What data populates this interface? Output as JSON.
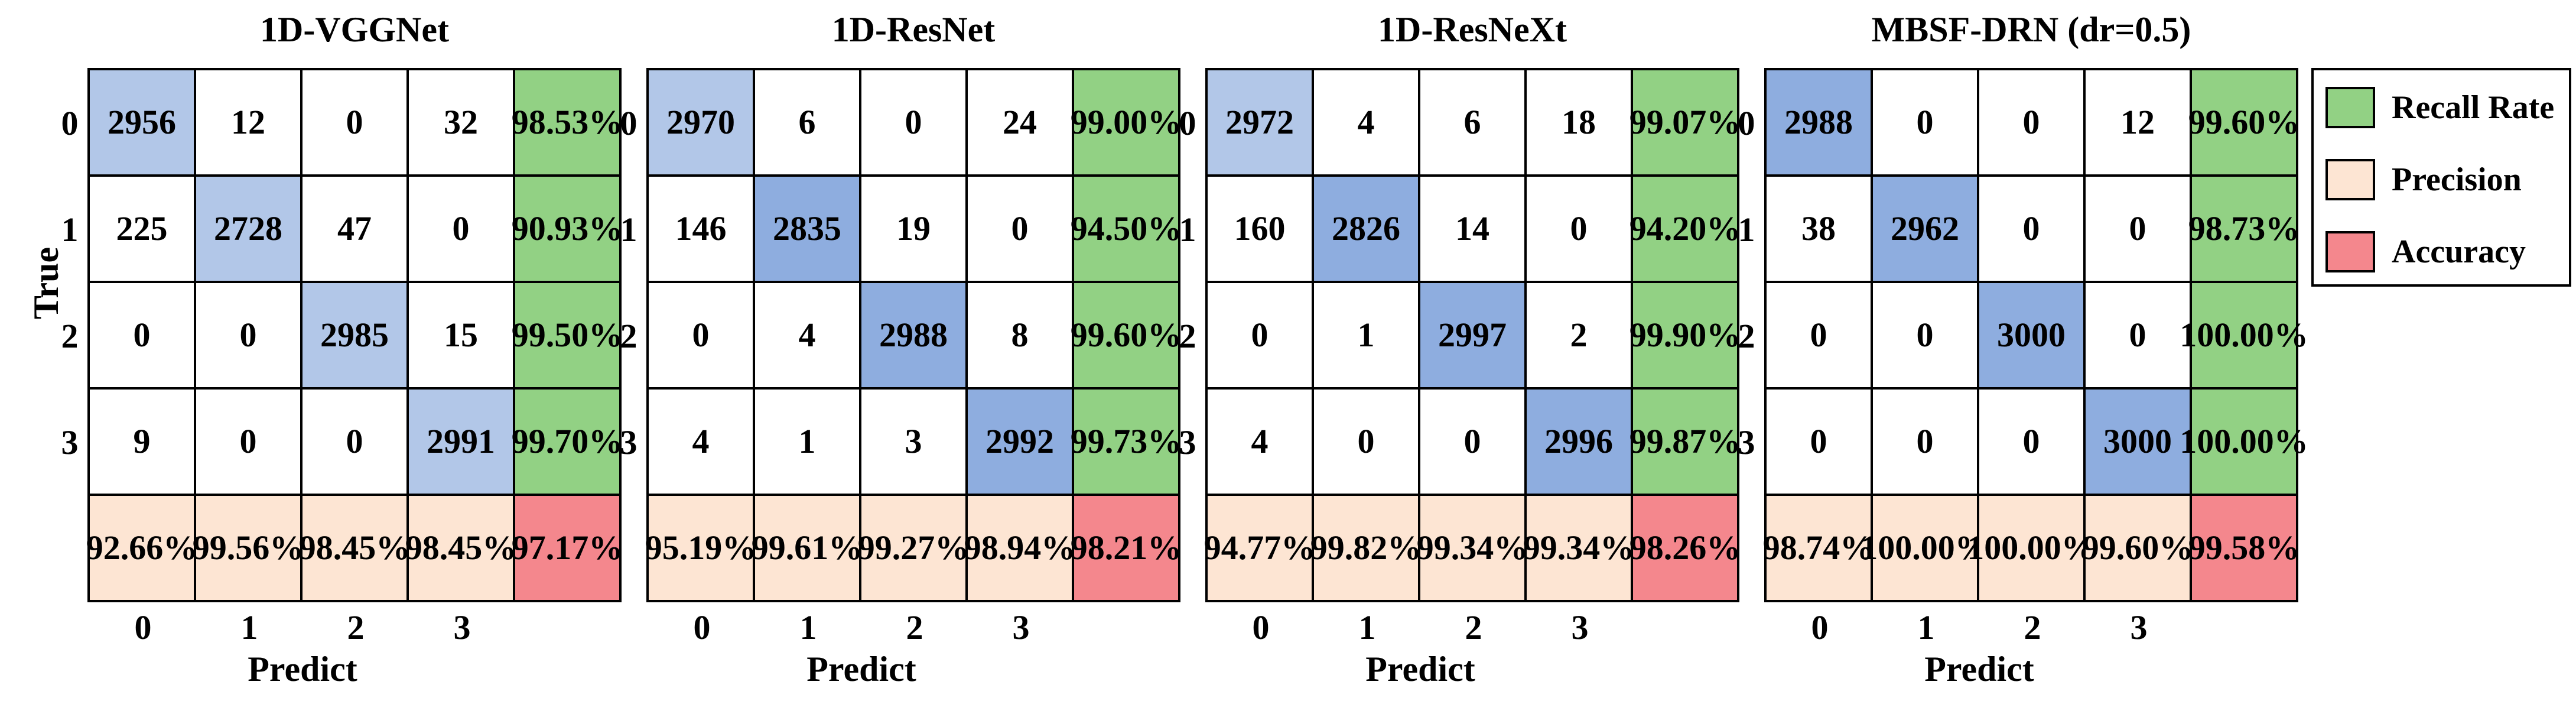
{
  "chart_data": [
    {
      "type": "heatmap",
      "title": "1D-VGGNet",
      "xlabel": "Predict",
      "ylabel": "True",
      "categories": [
        "0",
        "1",
        "2",
        "3"
      ],
      "matrix": [
        [
          2956,
          12,
          0,
          32
        ],
        [
          225,
          2728,
          47,
          0
        ],
        [
          0,
          0,
          2985,
          15
        ],
        [
          9,
          0,
          0,
          2991
        ]
      ],
      "recall": [
        "98.53 %",
        "90.93 %",
        "99.50 %",
        "99.70 %"
      ],
      "precision": [
        "92.66 %",
        "99.56 %",
        "98.45 %",
        "98.45 %"
      ],
      "accuracy": "97.17 %"
    },
    {
      "type": "heatmap",
      "title": "1D-ResNet",
      "xlabel": "Predict",
      "ylabel": "",
      "categories": [
        "0",
        "1",
        "2",
        "3"
      ],
      "matrix": [
        [
          2970,
          6,
          0,
          24
        ],
        [
          146,
          2835,
          19,
          0
        ],
        [
          0,
          4,
          2988,
          8
        ],
        [
          4,
          1,
          3,
          2992
        ]
      ],
      "recall": [
        "99.00 %",
        "94.50 %",
        "99.60 %",
        "99.73 %"
      ],
      "precision": [
        "95.19 %",
        "99.61 %",
        "99.27 %",
        "98.94 %"
      ],
      "accuracy": "98.21 %"
    },
    {
      "type": "heatmap",
      "title": "1D-ResNeXt",
      "xlabel": "Predict",
      "ylabel": "",
      "categories": [
        "0",
        "1",
        "2",
        "3"
      ],
      "matrix": [
        [
          2972,
          4,
          6,
          18
        ],
        [
          160,
          2826,
          14,
          0
        ],
        [
          0,
          1,
          2997,
          2
        ],
        [
          4,
          0,
          0,
          2996
        ]
      ],
      "recall": [
        "99.07 %",
        "94.20 %",
        "99.90 %",
        "99.87 %"
      ],
      "precision": [
        "94.77 %",
        "99.82 %",
        "99.34 %",
        "99.34 %"
      ],
      "accuracy": "98.26 %"
    },
    {
      "type": "heatmap",
      "title": "MBSF-DRN (dr=0.5)",
      "xlabel": "Predict",
      "ylabel": "",
      "categories": [
        "0",
        "1",
        "2",
        "3"
      ],
      "matrix": [
        [
          2988,
          0,
          0,
          12
        ],
        [
          38,
          2962,
          0,
          0
        ],
        [
          0,
          0,
          3000,
          0
        ],
        [
          0,
          0,
          0,
          3000
        ]
      ],
      "recall": [
        "99.60 %",
        "98.73 %",
        "100.0 0%",
        "100.0 0%"
      ],
      "precision": [
        "98.74 %",
        "100.0 0%",
        "100.0 0%",
        "99.60 %"
      ],
      "accuracy": "99.58 %"
    }
  ],
  "legend": {
    "items": [
      {
        "label": "Recall Rate",
        "color": "#92d184"
      },
      {
        "label": "Precision",
        "color": "#fde5d3"
      },
      {
        "label": "Accuracy",
        "color": "#f4878d"
      }
    ]
  },
  "colors": {
    "diag_light": "#b2c7e8",
    "diag_dark": "#8eaddf",
    "recall": "#92d184",
    "precision": "#fde5d3",
    "accuracy": "#f4878d",
    "offdiag": "#ffffff"
  }
}
